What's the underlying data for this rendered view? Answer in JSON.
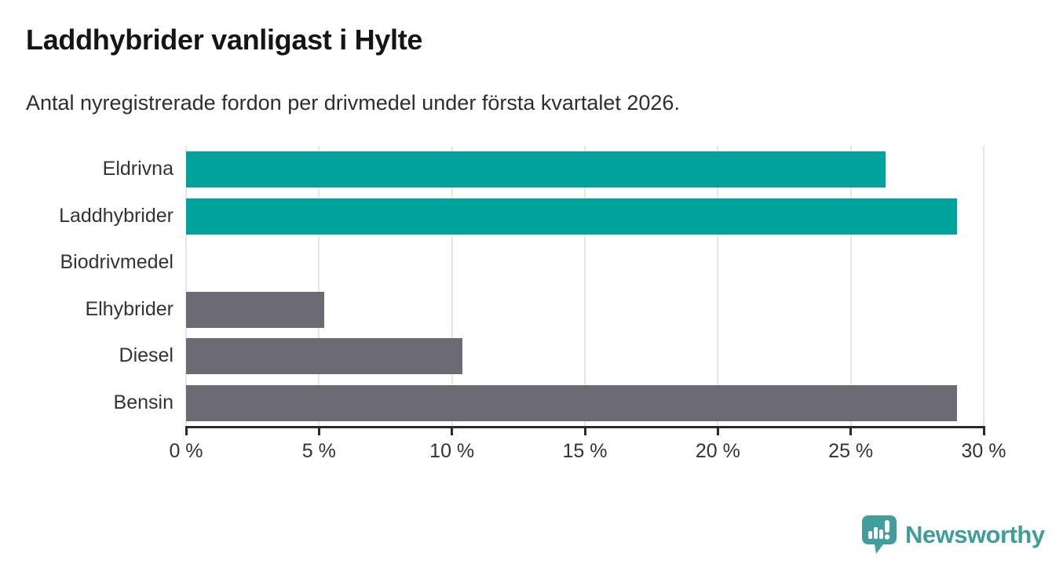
{
  "header": {
    "title": "Laddhybrider vanligast i Hylte",
    "subtitle": "Antal nyregistrerade fordon per drivmedel under första kvartalet 2026."
  },
  "chart_data": {
    "type": "bar",
    "orientation": "horizontal",
    "title": "Laddhybrider vanligast i Hylte",
    "subtitle": "Antal nyregistrerade fordon per drivmedel under första kvartalet 2026.",
    "categories": [
      "Eldrivna",
      "Laddhybrider",
      "Biodrivmedel",
      "Elhybrider",
      "Diesel",
      "Bensin"
    ],
    "values": [
      26.3,
      29.0,
      0,
      5.2,
      10.4,
      29.0
    ],
    "unit": "%",
    "xlabel": "",
    "ylabel": "",
    "xlim": [
      0,
      30
    ],
    "xticks": [
      0,
      5,
      10,
      15,
      20,
      25,
      30
    ],
    "xtick_labels": [
      "0 %",
      "5 %",
      "10 %",
      "15 %",
      "20 %",
      "25 %",
      "30 %"
    ],
    "grid": true,
    "legend": false,
    "bar_colors": [
      "#00a39b",
      "#00a39b",
      "#00a39b",
      "#6c6a72",
      "#6c6a72",
      "#6c6a72"
    ]
  },
  "colors": {
    "teal_bar": "#00a39b",
    "gray_bar": "#6c6a72",
    "axis": "#2b2b2b",
    "gridline": "#e6e6e6",
    "label_text": "#333333",
    "title_text": "#151515",
    "logo_teal": "#429e9b",
    "brand_text_teal": "#3f9e99"
  },
  "footer": {
    "brand": "Newsworthy",
    "logo_icon": "newsworthy-pin-barchart-icon"
  }
}
